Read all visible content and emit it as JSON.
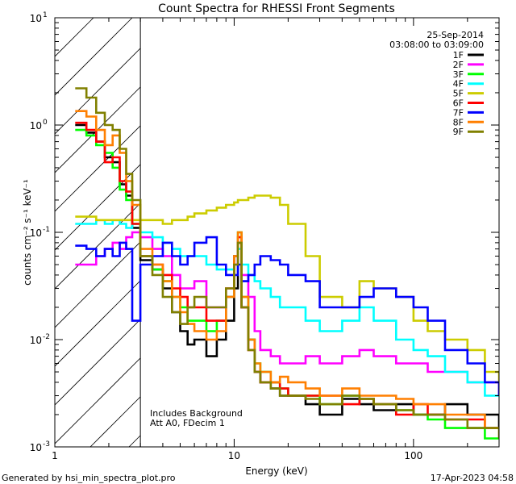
{
  "chart_data": {
    "type": "line",
    "title": "Count Spectra for RHESSI Front Segments",
    "xlabel": "Energy (keV)",
    "ylabel": "counts cm⁻² s⁻¹ keV⁻¹",
    "x_scale": "log",
    "y_scale": "log",
    "xlim": [
      1,
      300
    ],
    "ylim": [
      0.001,
      10
    ],
    "x_ticks": [
      {
        "value": 1,
        "label": "1"
      },
      {
        "value": 10,
        "label": "10"
      },
      {
        "value": 100,
        "label": "100"
      }
    ],
    "y_ticks": [
      {
        "value": 10,
        "label": "10",
        "exp": "1"
      },
      {
        "value": 1,
        "label": "10",
        "exp": "0"
      },
      {
        "value": 0.1,
        "label": "10",
        "exp": "-1"
      },
      {
        "value": 0.01,
        "label": "10",
        "exp": "-2"
      },
      {
        "value": 0.001,
        "label": "10",
        "exp": "-3"
      }
    ],
    "hatch_region": [
      1,
      3
    ],
    "date": "25-Sep-2014",
    "time_range": "03:08:00 to 03:09:00",
    "annotations": [
      "Includes Background",
      "Att A0, FDecim 1"
    ],
    "legend_position": "top-right",
    "series": [
      {
        "name": "1F",
        "color": "#000000",
        "x": [
          1.3,
          1.5,
          1.7,
          1.9,
          2.1,
          2.3,
          2.5,
          2.7,
          3,
          3.5,
          4,
          4.5,
          5,
          5.5,
          6,
          7,
          8,
          9,
          10,
          10.5,
          11,
          12,
          13,
          14,
          16,
          18,
          20,
          25,
          30,
          40,
          50,
          60,
          80,
          100,
          120,
          150,
          200,
          250,
          300
        ],
        "y": [
          1.0,
          0.85,
          0.7,
          0.5,
          0.45,
          0.28,
          0.22,
          0.11,
          0.055,
          0.045,
          0.03,
          0.018,
          0.012,
          0.009,
          0.01,
          0.007,
          0.01,
          0.015,
          0.03,
          0.08,
          0.02,
          0.01,
          0.005,
          0.004,
          0.0035,
          0.003,
          0.003,
          0.0025,
          0.002,
          0.0028,
          0.0025,
          0.0022,
          0.0025,
          0.002,
          0.002,
          0.0025,
          0.002,
          0.002,
          0.0015
        ]
      },
      {
        "name": "2F",
        "color": "#ff00ff",
        "x": [
          1.3,
          1.5,
          1.7,
          1.9,
          2.1,
          2.3,
          2.5,
          2.7,
          3,
          3.5,
          4,
          4.5,
          5,
          5.5,
          6,
          7,
          8,
          9,
          10,
          10.5,
          11,
          12,
          13,
          14,
          16,
          18,
          20,
          25,
          30,
          40,
          50,
          60,
          80,
          100,
          120,
          150,
          200,
          250,
          300
        ],
        "y": [
          0.05,
          0.05,
          0.06,
          0.07,
          0.08,
          0.07,
          0.09,
          0.1,
          0.09,
          0.07,
          0.06,
          0.04,
          0.03,
          0.03,
          0.035,
          0.02,
          0.02,
          0.025,
          0.05,
          0.08,
          0.04,
          0.025,
          0.012,
          0.008,
          0.007,
          0.006,
          0.006,
          0.007,
          0.006,
          0.007,
          0.008,
          0.007,
          0.006,
          0.006,
          0.005,
          0.005,
          0.004,
          0.004,
          0.003
        ]
      },
      {
        "name": "3F",
        "color": "#00ff00",
        "x": [
          1.3,
          1.5,
          1.7,
          1.9,
          2.1,
          2.3,
          2.5,
          2.7,
          3,
          3.5,
          4,
          4.5,
          5,
          5.5,
          6,
          7,
          8,
          9,
          10,
          10.5,
          11,
          12,
          13,
          14,
          16,
          18,
          20,
          25,
          30,
          40,
          50,
          60,
          80,
          100,
          120,
          150,
          200,
          250,
          300
        ],
        "y": [
          0.9,
          0.8,
          0.65,
          0.55,
          0.4,
          0.25,
          0.2,
          0.12,
          0.06,
          0.045,
          0.035,
          0.025,
          0.02,
          0.015,
          0.015,
          0.012,
          0.015,
          0.025,
          0.06,
          0.1,
          0.025,
          0.01,
          0.006,
          0.005,
          0.004,
          0.0035,
          0.003,
          0.003,
          0.0025,
          0.003,
          0.0028,
          0.0025,
          0.0022,
          0.002,
          0.0018,
          0.0015,
          0.0015,
          0.0012,
          0.0012
        ]
      },
      {
        "name": "4F",
        "color": "#00ffff",
        "x": [
          1.3,
          1.5,
          1.7,
          1.9,
          2.1,
          2.3,
          2.5,
          2.7,
          3,
          3.5,
          4,
          4.5,
          5,
          5.5,
          6,
          7,
          8,
          9,
          10,
          10.5,
          11,
          12,
          13,
          14,
          16,
          18,
          20,
          25,
          30,
          40,
          50,
          60,
          80,
          100,
          120,
          150,
          200,
          250,
          300
        ],
        "y": [
          0.12,
          0.12,
          0.13,
          0.12,
          0.13,
          0.12,
          0.11,
          0.12,
          0.1,
          0.09,
          0.08,
          0.07,
          0.06,
          0.06,
          0.06,
          0.05,
          0.045,
          0.045,
          0.06,
          0.07,
          0.05,
          0.04,
          0.035,
          0.03,
          0.025,
          0.02,
          0.02,
          0.015,
          0.012,
          0.015,
          0.02,
          0.015,
          0.01,
          0.008,
          0.007,
          0.005,
          0.004,
          0.003,
          0.003
        ]
      },
      {
        "name": "5F",
        "color": "#cccc00",
        "x": [
          1.3,
          1.5,
          1.7,
          1.9,
          2.1,
          2.3,
          2.5,
          2.7,
          3,
          3.5,
          4,
          4.5,
          5,
          5.5,
          6,
          7,
          8,
          9,
          10,
          10.5,
          11,
          12,
          13,
          14,
          16,
          18,
          20,
          25,
          30,
          40,
          50,
          60,
          80,
          100,
          120,
          150,
          200,
          250,
          300
        ],
        "y": [
          0.14,
          0.14,
          0.13,
          0.13,
          0.13,
          0.13,
          0.13,
          0.13,
          0.13,
          0.13,
          0.12,
          0.13,
          0.13,
          0.14,
          0.15,
          0.16,
          0.17,
          0.18,
          0.19,
          0.2,
          0.2,
          0.21,
          0.22,
          0.22,
          0.21,
          0.18,
          0.12,
          0.06,
          0.025,
          0.02,
          0.035,
          0.03,
          0.025,
          0.015,
          0.012,
          0.01,
          0.008,
          0.005,
          0.004
        ]
      },
      {
        "name": "6F",
        "color": "#ff0000",
        "x": [
          1.3,
          1.5,
          1.7,
          1.9,
          2.1,
          2.3,
          2.5,
          2.7,
          3,
          3.5,
          4,
          4.5,
          5,
          5.5,
          6,
          7,
          8,
          9,
          10,
          10.5,
          11,
          12,
          13,
          14,
          16,
          18,
          20,
          25,
          30,
          40,
          50,
          60,
          80,
          100,
          120,
          150,
          200,
          250,
          300
        ],
        "y": [
          1.05,
          0.9,
          0.7,
          0.45,
          0.5,
          0.3,
          0.24,
          0.12,
          0.06,
          0.05,
          0.04,
          0.03,
          0.025,
          0.02,
          0.02,
          0.015,
          0.015,
          0.03,
          0.06,
          0.09,
          0.02,
          0.008,
          0.005,
          0.004,
          0.004,
          0.0035,
          0.003,
          0.003,
          0.003,
          0.0025,
          0.0028,
          0.0025,
          0.002,
          0.0025,
          0.002,
          0.0018,
          0.0018,
          0.0015,
          0.0015
        ]
      },
      {
        "name": "7F",
        "color": "#0000ff",
        "x": [
          1.3,
          1.5,
          1.7,
          1.9,
          2.1,
          2.3,
          2.5,
          2.7,
          3,
          3.5,
          4,
          4.5,
          5,
          5.5,
          6,
          7,
          8,
          9,
          10,
          10.5,
          11,
          12,
          13,
          14,
          16,
          18,
          20,
          25,
          30,
          40,
          50,
          60,
          80,
          100,
          120,
          150,
          200,
          250,
          300
        ],
        "y": [
          0.075,
          0.07,
          0.06,
          0.07,
          0.06,
          0.08,
          0.07,
          0.015,
          0.05,
          0.06,
          0.08,
          0.06,
          0.05,
          0.06,
          0.08,
          0.09,
          0.05,
          0.04,
          0.04,
          0.05,
          0.035,
          0.04,
          0.05,
          0.06,
          0.055,
          0.05,
          0.04,
          0.035,
          0.02,
          0.02,
          0.025,
          0.03,
          0.025,
          0.02,
          0.015,
          0.008,
          0.006,
          0.004,
          0.003
        ]
      },
      {
        "name": "8F",
        "color": "#ff7f00",
        "x": [
          1.3,
          1.5,
          1.7,
          1.9,
          2.1,
          2.3,
          2.5,
          2.7,
          3,
          3.5,
          4,
          4.5,
          5,
          5.5,
          6,
          7,
          8,
          9,
          10,
          10.5,
          11,
          12,
          13,
          14,
          16,
          18,
          20,
          25,
          30,
          40,
          50,
          60,
          80,
          100,
          120,
          150,
          200,
          250,
          300
        ],
        "y": [
          1.35,
          1.2,
          0.9,
          0.65,
          0.8,
          0.55,
          0.3,
          0.18,
          0.07,
          0.05,
          0.035,
          0.025,
          0.018,
          0.014,
          0.012,
          0.01,
          0.012,
          0.025,
          0.06,
          0.1,
          0.025,
          0.01,
          0.006,
          0.005,
          0.004,
          0.0045,
          0.004,
          0.0035,
          0.003,
          0.0035,
          0.003,
          0.003,
          0.0028,
          0.0025,
          0.0025,
          0.002,
          0.002,
          0.0015,
          0.0015
        ]
      },
      {
        "name": "9F",
        "color": "#808000",
        "x": [
          1.3,
          1.5,
          1.7,
          1.9,
          2.1,
          2.3,
          2.5,
          2.7,
          3,
          3.5,
          4,
          4.5,
          5,
          5.5,
          6,
          7,
          8,
          9,
          10,
          10.5,
          11,
          12,
          13,
          14,
          16,
          18,
          20,
          25,
          30,
          40,
          50,
          60,
          80,
          100,
          120,
          150,
          200,
          250,
          300
        ],
        "y": [
          2.2,
          1.8,
          1.3,
          1.0,
          0.9,
          0.6,
          0.35,
          0.2,
          0.06,
          0.04,
          0.025,
          0.018,
          0.014,
          0.02,
          0.025,
          0.02,
          0.02,
          0.03,
          0.05,
          0.08,
          0.02,
          0.008,
          0.005,
          0.004,
          0.0035,
          0.003,
          0.003,
          0.0028,
          0.0025,
          0.003,
          0.0028,
          0.0025,
          0.0022,
          0.002,
          0.002,
          0.0018,
          0.0015,
          0.0015,
          0.0012
        ]
      }
    ]
  },
  "footer": {
    "generated_by": "Generated by hsi_min_spectra_plot.pro",
    "timestamp": "17-Apr-2023 04:58"
  }
}
